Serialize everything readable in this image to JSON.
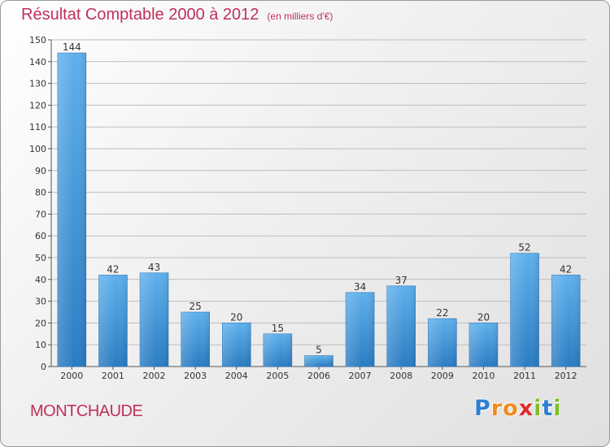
{
  "chart_data": {
    "type": "bar",
    "title": "Résultat Comptable 2000 à 2012",
    "subtitle": "(en milliers d'€)",
    "categories": [
      "2000",
      "2001",
      "2002",
      "2003",
      "2004",
      "2005",
      "2006",
      "2007",
      "2008",
      "2009",
      "2010",
      "2011",
      "2012"
    ],
    "values": [
      144,
      42,
      43,
      25,
      20,
      15,
      5,
      34,
      37,
      22,
      20,
      52,
      42
    ],
    "ylim": [
      0,
      150
    ],
    "yticks": [
      0,
      10,
      20,
      30,
      40,
      50,
      60,
      70,
      80,
      90,
      100,
      110,
      120,
      130,
      140,
      150
    ],
    "xlabel": "",
    "ylabel": "",
    "grid": true,
    "bar_color": "#3a8fd6"
  },
  "commune": "MONTCHAUDE",
  "logo": {
    "letters": [
      {
        "ch": "P",
        "color": "#2f7fd0"
      },
      {
        "ch": "r",
        "color": "#ef8a1c"
      },
      {
        "ch": "o",
        "color": "#ef8a1c"
      },
      {
        "ch": "x",
        "color": "#e02b2b"
      },
      {
        "ch": "i",
        "color": "#7cbf2a"
      },
      {
        "ch": "t",
        "color": "#2f7fd0"
      },
      {
        "ch": "i",
        "color": "#7cbf2a"
      }
    ]
  }
}
